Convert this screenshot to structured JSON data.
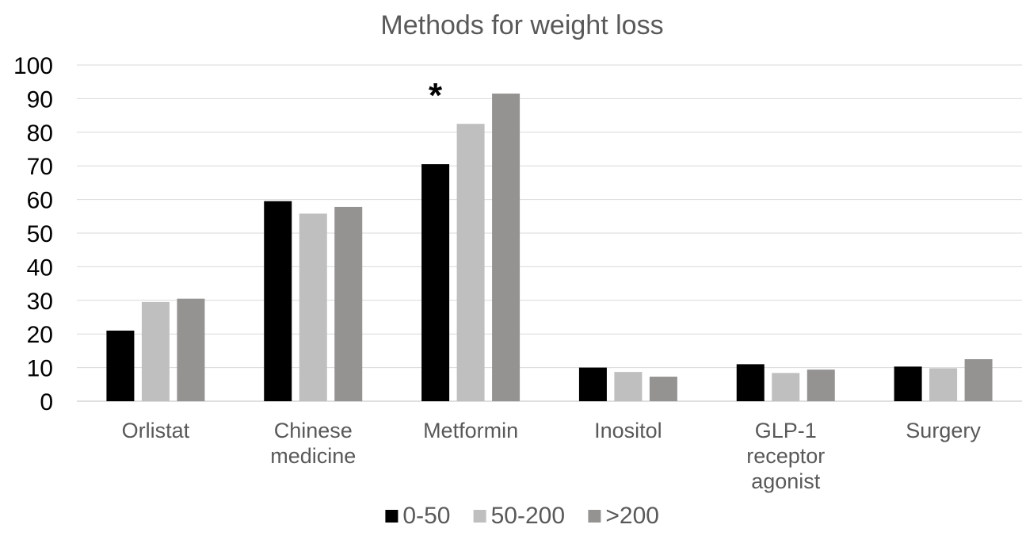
{
  "chart_data": {
    "type": "bar",
    "title": "Methods for weight loss",
    "xlabel": "",
    "ylabel": "",
    "ylim": [
      0,
      100
    ],
    "yticks": [
      0,
      10,
      20,
      30,
      40,
      50,
      60,
      70,
      80,
      90,
      100
    ],
    "grid": true,
    "legend_position": "bottom",
    "categories": [
      [
        "Orlistat"
      ],
      [
        "Chinese",
        "medicine"
      ],
      [
        "Metformin"
      ],
      [
        "Inositol"
      ],
      [
        "GLP-1",
        "receptor",
        "agonist"
      ],
      [
        "Surgery"
      ]
    ],
    "series": [
      {
        "name": "0-50",
        "color": "#000000",
        "values": [
          21,
          59.5,
          70.5,
          10,
          11,
          10.3
        ]
      },
      {
        "name": "50-200",
        "color": "#c0bfbf",
        "values": [
          29.5,
          55.8,
          82.5,
          8.7,
          8.4,
          9.8
        ]
      },
      {
        "name": ">200",
        "color": "#959292",
        "values": [
          30.5,
          57.8,
          91.5,
          7.3,
          9.4,
          12.5
        ]
      }
    ],
    "annotations": [
      {
        "text": "*",
        "category_index": 2
      }
    ]
  }
}
